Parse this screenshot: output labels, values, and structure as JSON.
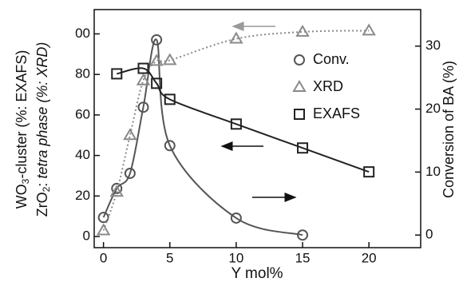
{
  "chart_data": {
    "type": "line",
    "x_label": "Y mol%",
    "y_label": [
      "WO",
      "3",
      "-cluster (%: EXAFS)"
    ],
    "y_label_2": [
      "ZrO",
      "2",
      ": ",
      "tetra phase (%: XRD)"
    ],
    "y2_label": "Conversion of BA (%)",
    "xlim": [
      -0.7,
      23.9
    ],
    "xticks": [
      0,
      5,
      10,
      15,
      20
    ],
    "ylim": [
      -5.5,
      112
    ],
    "yticks": [
      0,
      20,
      40,
      60,
      80,
      {
        "value": 100,
        "label": "00"
      }
    ],
    "y2lim": [
      -2,
      35.8
    ],
    "y2ticks": [
      0,
      10,
      20,
      30
    ],
    "series": [
      {
        "name": "Conv.",
        "color": "#555555",
        "marker": "circle",
        "axis": "y2",
        "x": [
          0,
          1,
          2,
          3,
          4,
          5,
          10,
          15
        ],
        "values": [
          2.8,
          7.4,
          9.8,
          20.3,
          31.0,
          14.2,
          2.7,
          0
        ]
      },
      {
        "name": "XRD",
        "color": "#8a8a8a",
        "marker": "triangle",
        "dashed": true,
        "x": [
          0,
          1,
          2,
          3,
          4,
          5,
          10,
          15,
          20
        ],
        "values": [
          3,
          22,
          50,
          77,
          86.6,
          87,
          97.6,
          101,
          101.6
        ]
      },
      {
        "name": "EXAFS",
        "color": "#222222",
        "marker": "square",
        "x": [
          1,
          3,
          4,
          5,
          10,
          15,
          20
        ],
        "values": [
          80.3,
          83,
          75.6,
          67.7,
          55.5,
          43.7,
          31.9
        ]
      }
    ]
  }
}
